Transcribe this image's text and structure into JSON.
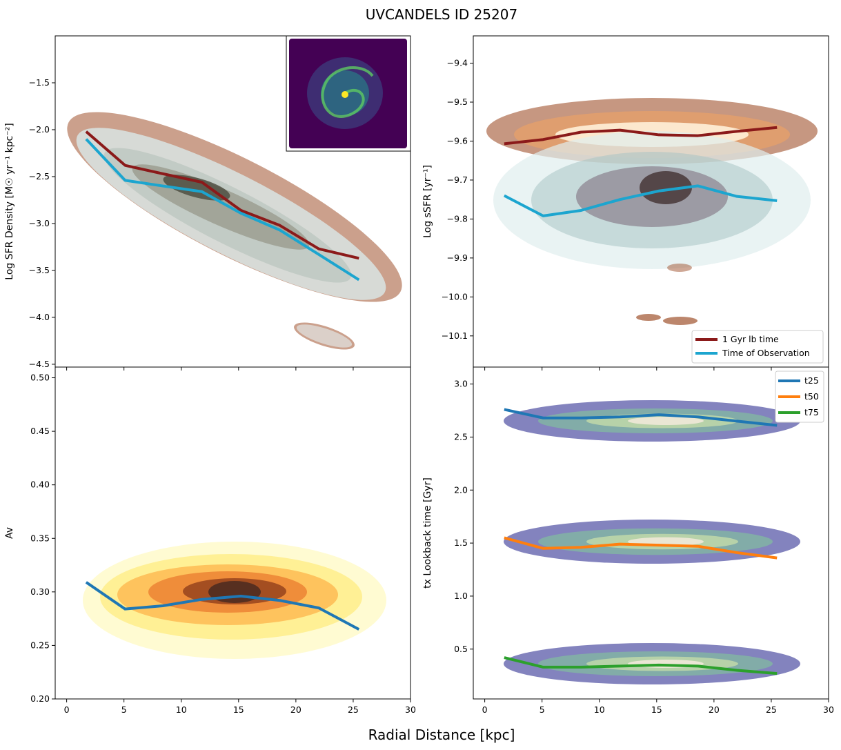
{
  "figure": {
    "title": "UVCANDELS ID 25207",
    "xlabel": "Radial Distance [kpc]"
  },
  "chart_data": [
    {
      "type": "line",
      "panel": "top-left",
      "ylabel": "Log SFR Density [M☉ yr⁻¹ kpc⁻²]",
      "xlim": [
        -1,
        30
      ],
      "ylim": [
        -4.53,
        -1.0
      ],
      "xticks": [],
      "yticks": [
        -4.5,
        -4.0,
        -3.5,
        -3.0,
        -2.5,
        -2.0,
        -1.5
      ],
      "inset": "galaxy-image",
      "series": [
        {
          "name": "1 Gyr lb time",
          "color": "#8b1a1a",
          "x": [
            1.7,
            5.1,
            8.4,
            11.8,
            15.2,
            18.6,
            22.0,
            25.5
          ],
          "y": [
            -2.02,
            -2.38,
            -2.47,
            -2.56,
            -2.86,
            -3.02,
            -3.27,
            -3.37
          ]
        },
        {
          "name": "Time of Observation",
          "color": "#1ca5cf",
          "x": [
            1.7,
            5.1,
            8.4,
            11.8,
            15.2,
            18.6,
            22.0,
            25.5
          ],
          "y": [
            -2.1,
            -2.54,
            -2.6,
            -2.66,
            -2.89,
            -3.07,
            -3.33,
            -3.6
          ]
        }
      ]
    },
    {
      "type": "line",
      "panel": "top-right",
      "ylabel": "Log sSFR [yr⁻¹]",
      "xlim": [
        -1,
        30
      ],
      "ylim": [
        -10.18,
        -9.33
      ],
      "xticks": [],
      "yticks": [
        -10.1,
        -10.0,
        -9.9,
        -9.8,
        -9.7,
        -9.6,
        -9.5,
        -9.4
      ],
      "legend": "lower-right",
      "series": [
        {
          "name": "1 Gyr lb time",
          "color": "#8b1a1a",
          "x": [
            1.7,
            5.1,
            8.4,
            11.8,
            15.2,
            18.6,
            22.0,
            25.5
          ],
          "y": [
            -9.607,
            -9.596,
            -9.577,
            -9.572,
            -9.584,
            -9.586,
            -9.575,
            -9.565
          ]
        },
        {
          "name": "Time of Observation",
          "color": "#1ca5cf",
          "x": [
            1.7,
            5.1,
            8.4,
            11.8,
            15.2,
            18.6,
            22.0,
            25.5
          ],
          "y": [
            -9.74,
            -9.792,
            -9.778,
            -9.75,
            -9.728,
            -9.715,
            -9.742,
            -9.753
          ]
        }
      ]
    },
    {
      "type": "line",
      "panel": "bottom-left",
      "ylabel": "Av",
      "xlim": [
        -1,
        30
      ],
      "ylim": [
        0.2,
        0.51
      ],
      "xticks": [
        0,
        5,
        10,
        15,
        20,
        25,
        30
      ],
      "yticks": [
        0.2,
        0.25,
        0.3,
        0.35,
        0.4,
        0.45,
        0.5
      ],
      "series": [
        {
          "name": "Av",
          "color": "#1f77b4",
          "x": [
            1.7,
            5.1,
            8.4,
            11.8,
            15.2,
            18.6,
            22.0,
            25.5
          ],
          "y": [
            0.309,
            0.284,
            0.287,
            0.293,
            0.296,
            0.292,
            0.285,
            0.265
          ]
        }
      ]
    },
    {
      "type": "line",
      "panel": "bottom-right",
      "ylabel": "tx Lookback time [Gyr]",
      "xlim": [
        -1,
        30
      ],
      "ylim": [
        0.03,
        3.16
      ],
      "xticks": [
        0,
        5,
        10,
        15,
        20,
        25,
        30
      ],
      "yticks": [
        0.5,
        1.0,
        1.5,
        2.0,
        2.5,
        3.0
      ],
      "legend": "upper-right",
      "series": [
        {
          "name": "t25",
          "color": "#1f77b4",
          "x": [
            1.7,
            5.1,
            8.4,
            11.8,
            15.2,
            18.6,
            22.0,
            25.5
          ],
          "y": [
            2.76,
            2.68,
            2.68,
            2.69,
            2.71,
            2.69,
            2.65,
            2.61
          ]
        },
        {
          "name": "t50",
          "color": "#ff7f0e",
          "x": [
            1.7,
            5.1,
            8.4,
            11.8,
            15.2,
            18.6,
            22.0,
            25.5
          ],
          "y": [
            1.55,
            1.45,
            1.46,
            1.49,
            1.48,
            1.47,
            1.41,
            1.36
          ]
        },
        {
          "name": "t75",
          "color": "#2ca02c",
          "x": [
            1.7,
            5.1,
            8.4,
            11.8,
            15.2,
            18.6,
            22.0,
            25.5
          ],
          "y": [
            0.42,
            0.33,
            0.33,
            0.34,
            0.35,
            0.34,
            0.3,
            0.27
          ]
        }
      ]
    }
  ]
}
